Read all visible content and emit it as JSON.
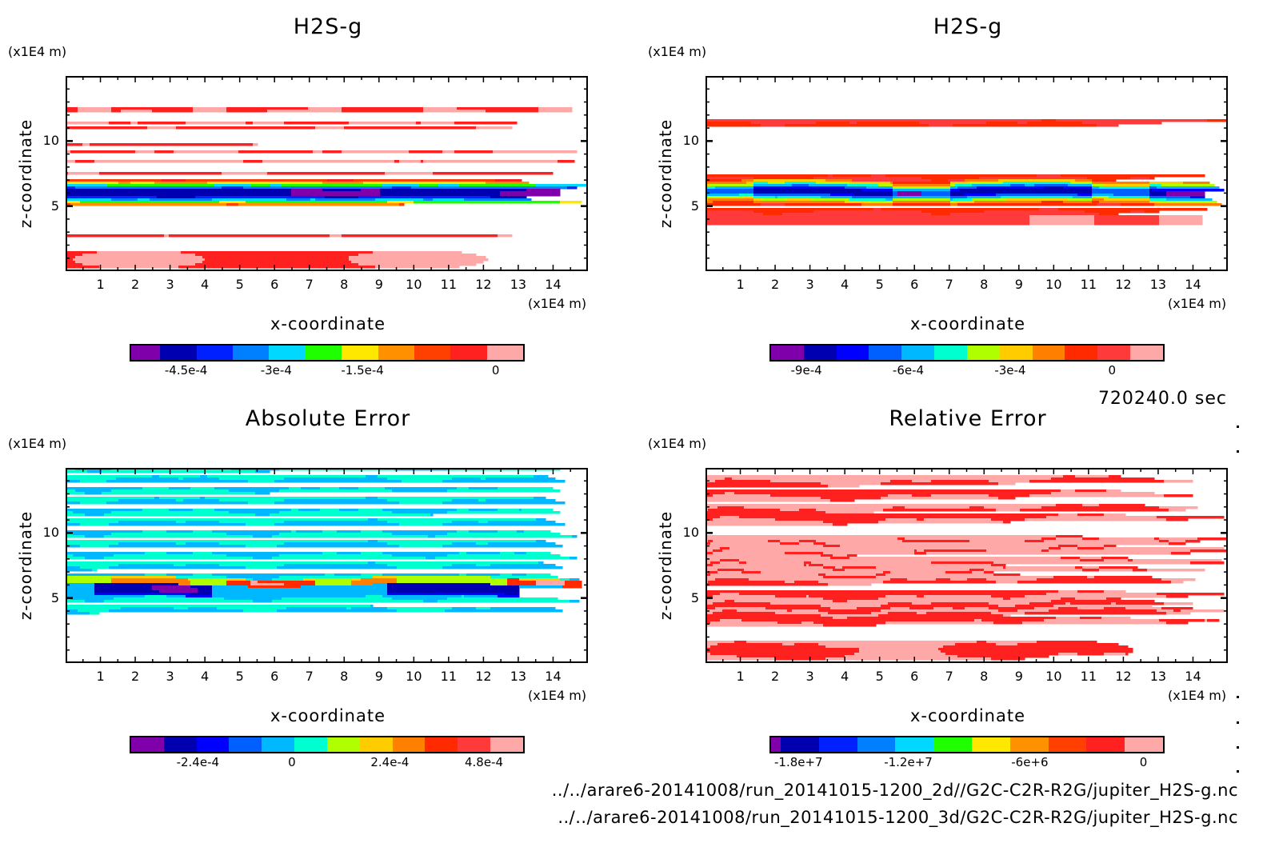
{
  "time_label": "720240.0 sec",
  "files": [
    "../../arare6-20141008/run_20141015-1200_2d//G2C-C2R-R2G/jupiter_H2S-g.nc",
    "../../arare6-20141008/run_20141015-1200_3d/G2C-C2R-R2G/jupiter_H2S-g.nc"
  ],
  "chart_data": [
    {
      "type": "heatmap",
      "title": "H2S-g",
      "xlabel": "x-coordinate",
      "ylabel": "z-coordinate",
      "x_unit": "(x1E4 m)",
      "y_unit": "(x1E4 m)",
      "xlim": [
        0,
        15
      ],
      "ylim": [
        0,
        15
      ],
      "x_ticks": [
        "1",
        "2",
        "3",
        "4",
        "5",
        "6",
        "7",
        "8",
        "9",
        "10",
        "11",
        "12",
        "13",
        "14"
      ],
      "y_ticks": [
        "5",
        "10"
      ],
      "colorbar": {
        "colors": [
          "#7f00aa",
          "#0000b0",
          "#0020ff",
          "#0080ff",
          "#00d8ff",
          "#20ff00",
          "#ffe800",
          "#ff9000",
          "#ff4000",
          "#ff2020",
          "#ffa8a8"
        ],
        "tick_labels": [
          "-4.5e-4",
          "-3e-4",
          "-1.5e-4",
          "0"
        ],
        "tick_values": [
          -0.00045,
          -0.0003,
          -0.00015,
          0
        ]
      },
      "field": "h2s_2d"
    },
    {
      "type": "heatmap",
      "title": "H2S-g",
      "xlabel": "x-coordinate",
      "ylabel": "z-coordinate",
      "x_unit": "(x1E4 m)",
      "y_unit": "(x1E4 m)",
      "xlim": [
        0,
        15
      ],
      "ylim": [
        0,
        15
      ],
      "x_ticks": [
        "1",
        "2",
        "3",
        "4",
        "5",
        "6",
        "7",
        "8",
        "9",
        "10",
        "11",
        "12",
        "13",
        "14"
      ],
      "y_ticks": [
        "5",
        "10"
      ],
      "colorbar": {
        "colors": [
          "#7f00aa",
          "#0000b0",
          "#0000ff",
          "#0060ff",
          "#00b8ff",
          "#00ffd0",
          "#b0ff00",
          "#ffcc00",
          "#ff8000",
          "#ff2a00",
          "#ff3a3a",
          "#ffa8a8"
        ],
        "tick_labels": [
          "-9e-4",
          "-6e-4",
          "-3e-4",
          "0"
        ],
        "tick_values": [
          -0.0009,
          -0.0006,
          -0.0003,
          0
        ]
      },
      "field": "h2s_3d"
    },
    {
      "type": "heatmap",
      "title": "Absolute Error",
      "xlabel": "x-coordinate",
      "ylabel": "z-coordinate",
      "x_unit": "(x1E4 m)",
      "y_unit": "(x1E4 m)",
      "xlim": [
        0,
        15
      ],
      "ylim": [
        0,
        15
      ],
      "x_ticks": [
        "1",
        "2",
        "3",
        "4",
        "5",
        "6",
        "7",
        "8",
        "9",
        "10",
        "11",
        "12",
        "13",
        "14"
      ],
      "y_ticks": [
        "5",
        "10"
      ],
      "colorbar": {
        "colors": [
          "#7f00aa",
          "#0000b0",
          "#0000ff",
          "#0060ff",
          "#00b8ff",
          "#00ffd0",
          "#b0ff00",
          "#ffcc00",
          "#ff8000",
          "#ff2a00",
          "#ff3a3a",
          "#ffa8a8"
        ],
        "tick_labels": [
          "-2.4e-4",
          "0",
          "2.4e-4",
          "4.8e-4"
        ],
        "tick_values": [
          -0.00024,
          0,
          0.00024,
          0.00048
        ]
      },
      "field": "abs_err"
    },
    {
      "type": "heatmap",
      "title": "Relative Error",
      "xlabel": "x-coordinate",
      "ylabel": "z-coordinate",
      "x_unit": "(x1E4 m)",
      "y_unit": "(x1E4 m)",
      "xlim": [
        0,
        15
      ],
      "ylim": [
        0,
        15
      ],
      "x_ticks": [
        "1",
        "2",
        "3",
        "4",
        "5",
        "6",
        "7",
        "8",
        "9",
        "10",
        "11",
        "12",
        "13",
        "14"
      ],
      "y_ticks": [
        "5",
        "10"
      ],
      "colorbar": {
        "colors": [
          "#7f00aa",
          "#0000b0",
          "#0020ff",
          "#0080ff",
          "#00d8ff",
          "#20ff00",
          "#ffe800",
          "#ff9000",
          "#ff4000",
          "#ff2020",
          "#ffa8a8"
        ],
        "tick_labels": [
          "-1.8e+7",
          "-1.2e+7",
          "-6e+6",
          "0"
        ],
        "tick_values": [
          -18000000,
          -12000000,
          -6000000,
          0
        ]
      },
      "field": "rel_err"
    }
  ]
}
